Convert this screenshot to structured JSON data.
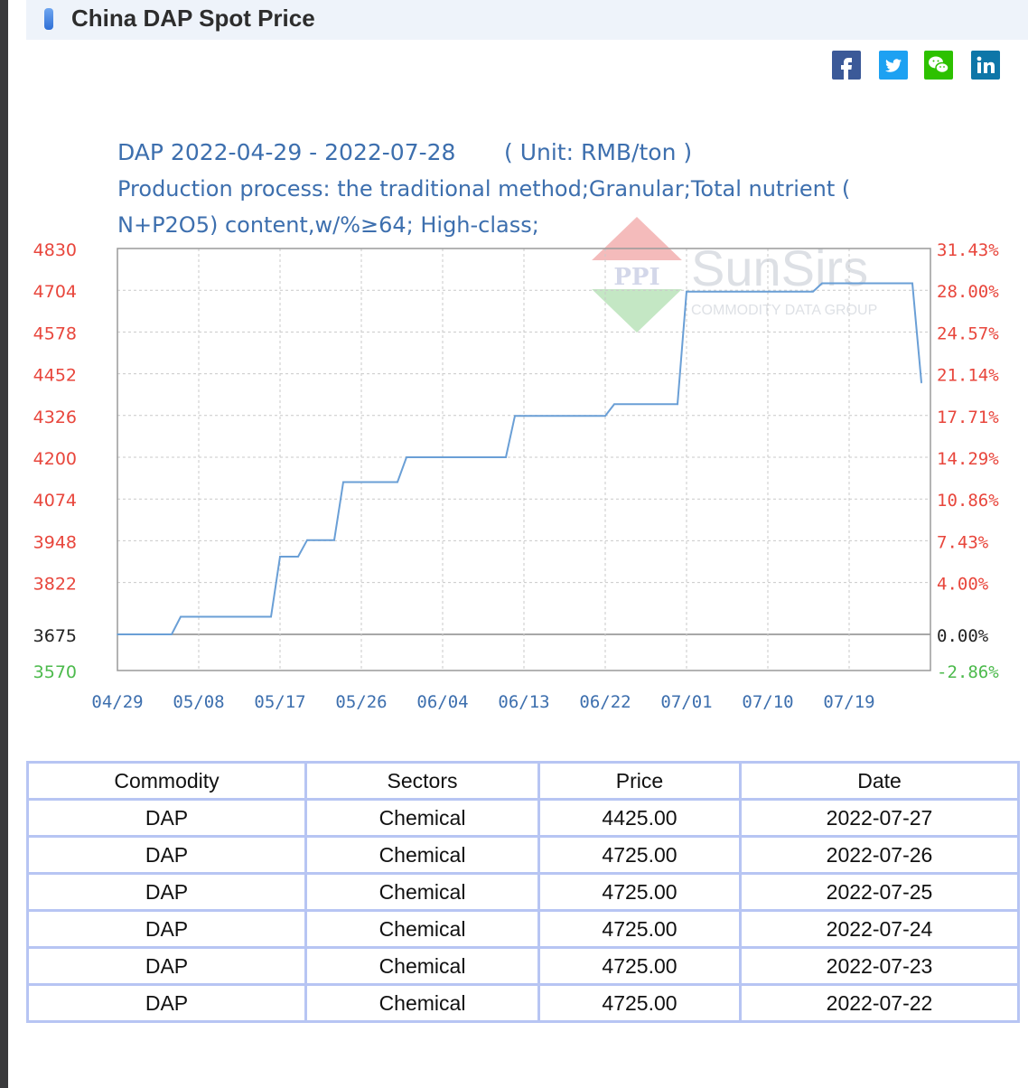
{
  "header": {
    "title": "China DAP Spot Price"
  },
  "social": [
    {
      "icon": "facebook-icon",
      "glyph": "f",
      "color": "#3b5998"
    },
    {
      "icon": "twitter-icon",
      "glyph": "t",
      "color": "#1da1f2"
    },
    {
      "icon": "wechat-icon",
      "glyph": "w",
      "color": "#2dc100"
    },
    {
      "icon": "linkedin-icon",
      "glyph": "in",
      "color": "#0e76a8"
    }
  ],
  "chart_data": {
    "type": "line",
    "title": "DAP 2022-04-29 - 2022-07-28",
    "unit": "( Unit: RMB/ton )",
    "subtitle_line1": "Production process: the traditional method;Granular;Total nutrient (",
    "subtitle_line2": "N+P2O5) content,w/%≥64; High-class;",
    "watermark": {
      "logo": "PPI",
      "name": "SunSirs",
      "tagline": "COMMODITY DATA GROUP"
    },
    "x_start": "04/29",
    "x_end": "07/28",
    "x_ticks": [
      "04/29",
      "05/08",
      "05/17",
      "05/26",
      "06/04",
      "06/13",
      "06/22",
      "07/01",
      "07/10",
      "07/19"
    ],
    "y_ticks": [
      "4830",
      "4704",
      "4578",
      "4452",
      "4326",
      "4200",
      "4074",
      "3948",
      "3822",
      "3675",
      "3570"
    ],
    "y2_ticks": [
      "31.43%",
      "28.00%",
      "24.57%",
      "21.14%",
      "17.71%",
      "14.29%",
      "10.86%",
      "7.43%",
      "4.00%",
      "0.00%",
      "-2.86%"
    ],
    "ylim": [
      3570,
      4830
    ],
    "baseline": 3675,
    "grid": true,
    "colors": {
      "line": "#6a9fd6",
      "up_axis": "#e8463c",
      "down_axis": "#4cba4c",
      "base_axis": "#222222",
      "x_axis": "#3d6fae",
      "title": "#3d6fae"
    },
    "series": [
      {
        "points": [
          {
            "x": "04/29",
            "y": 3675
          },
          {
            "x": "05/05",
            "y": 3675
          },
          {
            "x": "05/06",
            "y": 3725
          },
          {
            "x": "05/16",
            "y": 3725
          },
          {
            "x": "05/17",
            "y": 3900
          },
          {
            "x": "05/19",
            "y": 3900
          },
          {
            "x": "05/20",
            "y": 3950
          },
          {
            "x": "05/23",
            "y": 3950
          },
          {
            "x": "05/24",
            "y": 4125
          },
          {
            "x": "05/30",
            "y": 4125
          },
          {
            "x": "05/31",
            "y": 4200
          },
          {
            "x": "06/11",
            "y": 4200
          },
          {
            "x": "06/12",
            "y": 4325
          },
          {
            "x": "06/22",
            "y": 4325
          },
          {
            "x": "06/23",
            "y": 4360
          },
          {
            "x": "06/30",
            "y": 4360
          },
          {
            "x": "07/01",
            "y": 4700
          },
          {
            "x": "07/15",
            "y": 4700
          },
          {
            "x": "07/16",
            "y": 4725
          },
          {
            "x": "07/26",
            "y": 4725
          },
          {
            "x": "07/27",
            "y": 4425
          }
        ]
      }
    ]
  },
  "table": {
    "headers": [
      "Commodity",
      "Sectors",
      "Price",
      "Date"
    ],
    "rows": [
      [
        "DAP",
        "Chemical",
        "4425.00",
        "2022-07-27"
      ],
      [
        "DAP",
        "Chemical",
        "4725.00",
        "2022-07-26"
      ],
      [
        "DAP",
        "Chemical",
        "4725.00",
        "2022-07-25"
      ],
      [
        "DAP",
        "Chemical",
        "4725.00",
        "2022-07-24"
      ],
      [
        "DAP",
        "Chemical",
        "4725.00",
        "2022-07-23"
      ],
      [
        "DAP",
        "Chemical",
        "4725.00",
        "2022-07-22"
      ]
    ]
  }
}
